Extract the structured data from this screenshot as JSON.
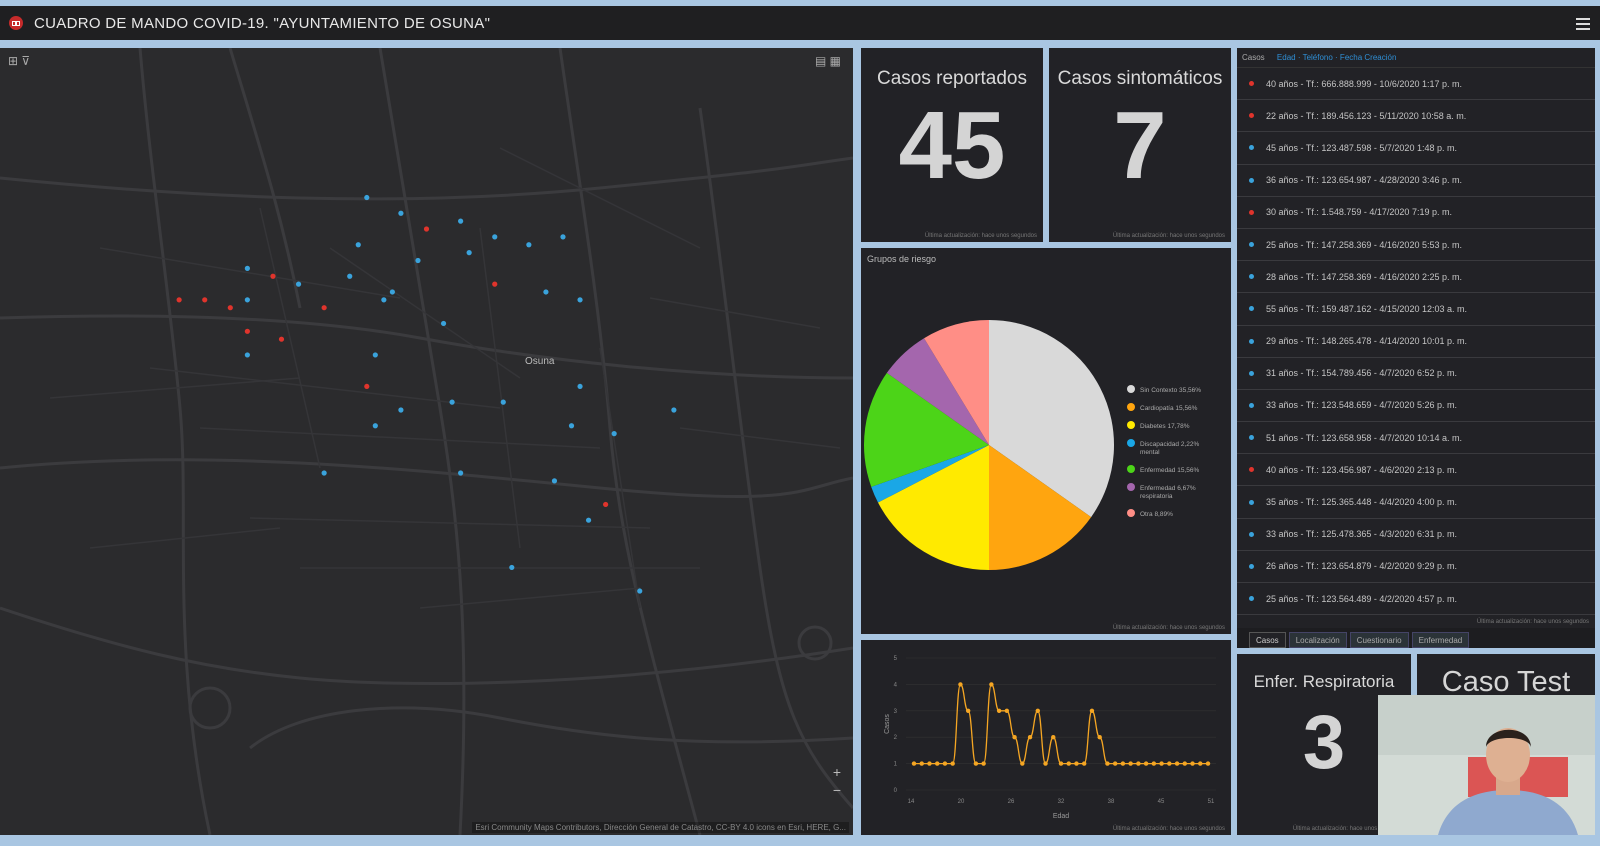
{
  "header": {
    "title": "CUADRO DE MANDO COVID-19. \"AYUNTAMIENTO DE OSUNA\""
  },
  "map": {
    "city_label": "Osuna",
    "attribution": "Esri Community Maps Contributors, Dirección General de Catastro, CC-BY 4.0 icons en Esri, HERE, G...",
    "points": [
      {
        "lon": 0.43,
        "lat": 0.19,
        "status": "blue"
      },
      {
        "lon": 0.47,
        "lat": 0.21,
        "status": "blue"
      },
      {
        "lon": 0.5,
        "lat": 0.23,
        "status": "red"
      },
      {
        "lon": 0.54,
        "lat": 0.22,
        "status": "blue"
      },
      {
        "lon": 0.58,
        "lat": 0.24,
        "status": "blue"
      },
      {
        "lon": 0.62,
        "lat": 0.25,
        "status": "blue"
      },
      {
        "lon": 0.66,
        "lat": 0.24,
        "status": "blue"
      },
      {
        "lon": 0.42,
        "lat": 0.25,
        "status": "blue"
      },
      {
        "lon": 0.49,
        "lat": 0.27,
        "status": "blue"
      },
      {
        "lon": 0.55,
        "lat": 0.26,
        "status": "blue"
      },
      {
        "lon": 0.29,
        "lat": 0.28,
        "status": "blue"
      },
      {
        "lon": 0.32,
        "lat": 0.29,
        "status": "red"
      },
      {
        "lon": 0.35,
        "lat": 0.3,
        "status": "blue"
      },
      {
        "lon": 0.41,
        "lat": 0.29,
        "status": "blue"
      },
      {
        "lon": 0.46,
        "lat": 0.31,
        "status": "blue"
      },
      {
        "lon": 0.58,
        "lat": 0.3,
        "status": "red"
      },
      {
        "lon": 0.64,
        "lat": 0.31,
        "status": "blue"
      },
      {
        "lon": 0.21,
        "lat": 0.32,
        "status": "red"
      },
      {
        "lon": 0.24,
        "lat": 0.32,
        "status": "red"
      },
      {
        "lon": 0.27,
        "lat": 0.33,
        "status": "red"
      },
      {
        "lon": 0.29,
        "lat": 0.32,
        "status": "blue"
      },
      {
        "lon": 0.38,
        "lat": 0.33,
        "status": "red"
      },
      {
        "lon": 0.45,
        "lat": 0.32,
        "status": "blue"
      },
      {
        "lon": 0.52,
        "lat": 0.35,
        "status": "blue"
      },
      {
        "lon": 0.68,
        "lat": 0.32,
        "status": "blue"
      },
      {
        "lon": 0.29,
        "lat": 0.36,
        "status": "red"
      },
      {
        "lon": 0.33,
        "lat": 0.37,
        "status": "red"
      },
      {
        "lon": 0.29,
        "lat": 0.39,
        "status": "blue"
      },
      {
        "lon": 0.44,
        "lat": 0.39,
        "status": "blue"
      },
      {
        "lon": 0.43,
        "lat": 0.43,
        "status": "red"
      },
      {
        "lon": 0.47,
        "lat": 0.46,
        "status": "blue"
      },
      {
        "lon": 0.53,
        "lat": 0.45,
        "status": "blue"
      },
      {
        "lon": 0.68,
        "lat": 0.43,
        "status": "blue"
      },
      {
        "lon": 0.59,
        "lat": 0.45,
        "status": "blue"
      },
      {
        "lon": 0.79,
        "lat": 0.46,
        "status": "blue"
      },
      {
        "lon": 0.44,
        "lat": 0.48,
        "status": "blue"
      },
      {
        "lon": 0.67,
        "lat": 0.48,
        "status": "blue"
      },
      {
        "lon": 0.72,
        "lat": 0.49,
        "status": "blue"
      },
      {
        "lon": 0.38,
        "lat": 0.54,
        "status": "blue"
      },
      {
        "lon": 0.54,
        "lat": 0.54,
        "status": "blue"
      },
      {
        "lon": 0.65,
        "lat": 0.55,
        "status": "blue"
      },
      {
        "lon": 0.71,
        "lat": 0.58,
        "status": "red"
      },
      {
        "lon": 0.69,
        "lat": 0.6,
        "status": "blue"
      },
      {
        "lon": 0.6,
        "lat": 0.66,
        "status": "blue"
      },
      {
        "lon": 0.75,
        "lat": 0.69,
        "status": "blue"
      }
    ]
  },
  "indicators": {
    "reported": {
      "title": "Casos reportados",
      "value": "45",
      "updated": "Última actualización: hace unos segundos"
    },
    "symptomatic": {
      "title": "Casos sintomáticos",
      "value": "7",
      "updated": "Última actualización: hace unos segundos"
    },
    "respiratory": {
      "title": "Enfer. Respiratoria",
      "value": "3",
      "updated": "Última actualización: hace unos segundos"
    },
    "test": {
      "title": "Caso Test"
    }
  },
  "risk_groups": {
    "title": "Grupos de riesgo",
    "updated": "Última actualización: hace unos segundos"
  },
  "line_panel": {
    "updated": "Última actualización: hace unos segundos"
  },
  "chart_data": [
    {
      "type": "pie",
      "title": "Grupos de riesgo",
      "slices": [
        {
          "label": "Sin Contexto",
          "pct_label": "35,56%",
          "value": 35.56,
          "color": "#d9d9d9"
        },
        {
          "label": "Cardiopatía",
          "pct_label": "15,56%",
          "value": 15.56,
          "color": "#ffa50f"
        },
        {
          "label": "Diabetes",
          "pct_label": "17,78%",
          "value": 17.78,
          "color": "#ffea00"
        },
        {
          "label": "Discapacidad",
          "pct_label": "2,22%",
          "extra": "mental",
          "value": 2.22,
          "color": "#1aa7e6"
        },
        {
          "label": "Enfermedad",
          "pct_label": "15,56%",
          "value": 15.56,
          "color": "#4cd418"
        },
        {
          "label": "Enfermedad",
          "pct_label": "6,67%",
          "extra": "respiratoria",
          "value": 6.67,
          "color": "#a466ad"
        },
        {
          "label": "Otra",
          "pct_label": "8,89%",
          "value": 8.89,
          "color": "#ff8e86"
        }
      ],
      "legend": "right"
    },
    {
      "type": "line",
      "xlabel": "Edad",
      "ylabel": "Casos",
      "x": [
        22,
        23,
        24,
        25,
        26,
        27,
        28,
        29,
        30,
        31,
        32,
        33,
        34,
        35,
        36,
        37,
        38,
        39,
        40,
        41,
        42,
        43,
        44,
        45,
        46,
        47,
        48,
        49,
        50,
        51,
        52,
        53,
        54,
        55,
        56,
        57,
        58,
        59,
        60
      ],
      "values": [
        1,
        1,
        1,
        1,
        1,
        1,
        4,
        3,
        1,
        1,
        4,
        3,
        3,
        2,
        1,
        2,
        3,
        1,
        2,
        1,
        1,
        1,
        1,
        3,
        2,
        1,
        1,
        1,
        1,
        1,
        1,
        1,
        1,
        1,
        1,
        1,
        1,
        1,
        1
      ],
      "x_ticks": [
        "14",
        "20",
        "26",
        "32",
        "38",
        "45",
        "51"
      ],
      "ylim": [
        0,
        5
      ],
      "y_ticks": [
        "0",
        "1",
        "2",
        "3",
        "4",
        "5"
      ],
      "color": "#f5a623"
    }
  ],
  "cases_list": {
    "header_label": "Casos",
    "sort_fields": "Edad · Teléfono · Fecha Creación",
    "rows": [
      {
        "text": "40 años  -  Tf.: 666.888.999 - 10/6/2020 1:17 p. m.",
        "status": "red"
      },
      {
        "text": "22 años  -  Tf.: 189.456.123 - 5/11/2020 10:58 a. m.",
        "status": "red"
      },
      {
        "text": "45 años  -  Tf.: 123.487.598 - 5/7/2020 1:48 p. m.",
        "status": "blue"
      },
      {
        "text": "36 años  -  Tf.: 123.654.987 - 4/28/2020 3:46 p. m.",
        "status": "blue"
      },
      {
        "text": "30 años  -  Tf.: 1.548.759 - 4/17/2020 7:19 p. m.",
        "status": "red"
      },
      {
        "text": "25 años  -  Tf.: 147.258.369 - 4/16/2020 5:53 p. m.",
        "status": "blue"
      },
      {
        "text": "28 años  -  Tf.: 147.258.369 - 4/16/2020 2:25 p. m.",
        "status": "blue"
      },
      {
        "text": "55 años  -  Tf.: 159.487.162 - 4/15/2020 12:03 a. m.",
        "status": "blue"
      },
      {
        "text": "29 años  -  Tf.: 148.265.478 - 4/14/2020 10:01 p. m.",
        "status": "blue"
      },
      {
        "text": "31 años  -  Tf.: 154.789.456 - 4/7/2020 6:52 p. m.",
        "status": "blue"
      },
      {
        "text": "33 años  -  Tf.: 123.548.659 - 4/7/2020 5:26 p. m.",
        "status": "blue"
      },
      {
        "text": "51 años  -  Tf.: 123.658.958 - 4/7/2020 10:14 a. m.",
        "status": "blue"
      },
      {
        "text": "40 años  -  Tf.: 123.456.987 - 4/6/2020 2:13 p. m.",
        "status": "red"
      },
      {
        "text": "35 años  -  Tf.: 125.365.448 - 4/4/2020 4:00 p. m.",
        "status": "blue"
      },
      {
        "text": "33 años  -  Tf.: 125.478.365 - 4/3/2020 6:31 p. m.",
        "status": "blue"
      },
      {
        "text": "26 años  -  Tf.: 123.654.879 - 4/2/2020 9:29 p. m.",
        "status": "blue"
      },
      {
        "text": "25 años  -  Tf.: 123.564.489 - 4/2/2020 4:57 p. m.",
        "status": "blue"
      }
    ],
    "updated": "Última actualización: hace unos segundos",
    "tabs": [
      "Casos",
      "Localización",
      "Cuestionario",
      "Enfermedad"
    ]
  },
  "colors": {
    "red": "#e0342c",
    "blue": "#3aa3dc",
    "accent": "#2f8fd5",
    "panel": "#222226"
  }
}
